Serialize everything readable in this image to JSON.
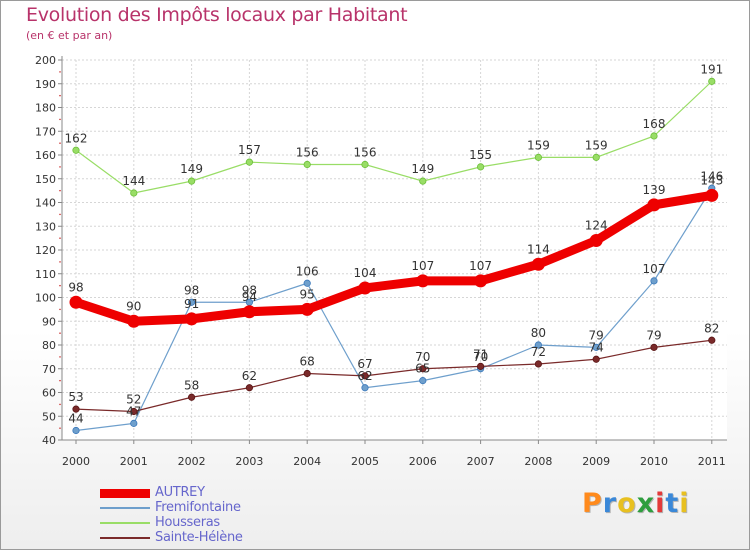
{
  "chart_data": {
    "type": "line",
    "title": "Evolution des Impôts locaux par Habitant",
    "subtitle": "(en € et par an)",
    "x": [
      2000,
      2001,
      2002,
      2003,
      2004,
      2005,
      2006,
      2007,
      2008,
      2009,
      2010,
      2011
    ],
    "x_tick_labels": [
      "2000",
      "2001",
      "2002",
      "2003",
      "2004",
      "2005",
      "2006",
      "2007",
      "2008",
      "2009",
      "2010",
      "2011"
    ],
    "ylim": [
      40,
      200
    ],
    "y_ticks": [
      40,
      50,
      60,
      70,
      80,
      90,
      100,
      110,
      120,
      130,
      140,
      150,
      160,
      170,
      180,
      190,
      200
    ],
    "y_tick_labels": [
      "40",
      "50",
      "60",
      "70",
      "80",
      "90",
      "100",
      "110",
      "120",
      "130",
      "140",
      "150",
      "160",
      "170",
      "180",
      "190",
      "200"
    ],
    "grid": true,
    "legend_position": "bottom-left",
    "series": [
      {
        "name": "AUTREY",
        "color": "#ee0000",
        "values": [
          98,
          90,
          91,
          94,
          95,
          104,
          107,
          107,
          114,
          124,
          139,
          143
        ],
        "labels": [
          "98",
          "90",
          "91",
          "94",
          "95",
          "104",
          "107",
          "107",
          "114",
          "124",
          "139",
          "143"
        ]
      },
      {
        "name": "Fremifontaine",
        "color": "#6e9fcc",
        "values": [
          44,
          47,
          98,
          98,
          106,
          62,
          65,
          70,
          80,
          79,
          107,
          146
        ],
        "labels": [
          "44",
          "47",
          "98",
          "98",
          "106",
          "62",
          "65",
          "70",
          "80",
          "79",
          "107",
          "146"
        ]
      },
      {
        "name": "Housseras",
        "color": "#99dd66",
        "values": [
          162,
          144,
          149,
          157,
          156,
          156,
          149,
          155,
          159,
          159,
          168,
          191
        ],
        "labels": [
          "162",
          "144",
          "149",
          "157",
          "156",
          "156",
          "149",
          "155",
          "159",
          "159",
          "168",
          "191"
        ]
      },
      {
        "name": "Sainte-Hélène",
        "color": "#7a2a2a",
        "values": [
          53,
          52,
          58,
          62,
          68,
          67,
          70,
          71,
          72,
          74,
          79,
          82
        ],
        "labels": [
          "53",
          "52",
          "58",
          "62",
          "68",
          "67",
          "70",
          "71",
          "72",
          "74",
          "79",
          "82"
        ]
      }
    ]
  },
  "logo": {
    "letters": [
      "P",
      "r",
      "o",
      "x",
      "i",
      "t",
      "i"
    ],
    "colors": [
      "#ff8a1c",
      "#3a88d8",
      "#e8c020",
      "#2e9e3e",
      "#e33a3a",
      "#3a88d8",
      "#e8c020"
    ]
  }
}
